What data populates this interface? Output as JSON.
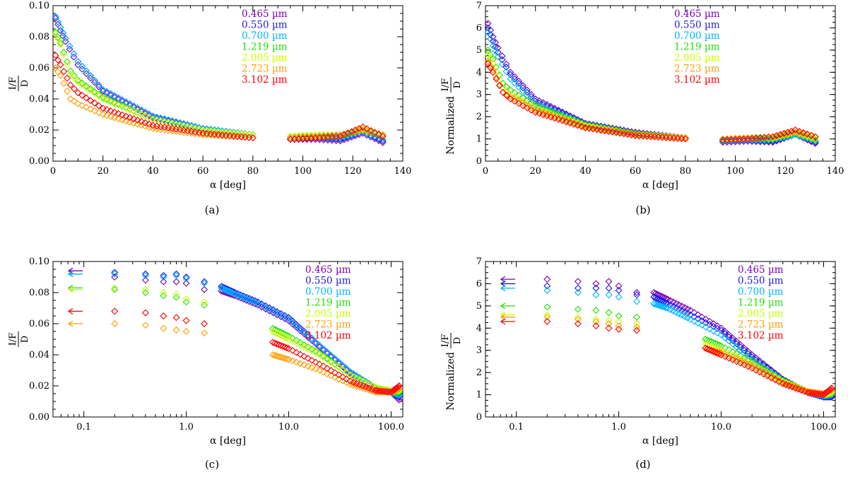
{
  "figure": {
    "wavelengths": [
      {
        "label": "0.465 µm",
        "color": "#7a00b8"
      },
      {
        "label": "0.550 µm",
        "color": "#1a1ae6"
      },
      {
        "label": "0.700 µm",
        "color": "#00b4ff"
      },
      {
        "label": "1.219 µm",
        "color": "#22e000"
      },
      {
        "label": "2.005 µm",
        "color": "#c8ff00"
      },
      {
        "label": "2.723 µm",
        "color": "#ff9e00"
      },
      {
        "label": "3.102 µm",
        "color": "#ff0000"
      }
    ],
    "panel_labels": [
      "(a)",
      "(b)",
      "(c)",
      "(d)"
    ],
    "xlabel": "α [deg]",
    "ylabel_abs": {
      "num": "I/F",
      "den": "D"
    },
    "ylabel_norm": {
      "prefix": "Normalized",
      "num": "I/F",
      "den": "D"
    }
  },
  "chart_data": [
    {
      "panel": "(a)",
      "type": "scatter",
      "xlabel": "α [deg]",
      "ylabel": "I/F / D",
      "xlim": [
        0,
        140
      ],
      "ylim": [
        0,
        0.1
      ],
      "xscale": "linear",
      "xticks": [
        "0",
        "20",
        "40",
        "60",
        "80",
        "100",
        "120",
        "140"
      ],
      "yticks": [
        "0.00",
        "0.02",
        "0.04",
        "0.06",
        "0.08",
        "0.10"
      ],
      "legend": "top-right",
      "series": [
        {
          "name": "0.465 µm",
          "x": [
            1,
            3,
            5,
            10,
            20,
            40,
            60,
            80,
            95,
            105,
            115,
            124,
            132
          ],
          "y": [
            0.092,
            0.084,
            0.077,
            0.062,
            0.045,
            0.028,
            0.021,
            0.017,
            0.014,
            0.014,
            0.013,
            0.018,
            0.012
          ]
        },
        {
          "name": "0.550 µm",
          "x": [
            1,
            3,
            5,
            10,
            20,
            40,
            60,
            80,
            95,
            105,
            115,
            124,
            132
          ],
          "y": [
            0.093,
            0.086,
            0.079,
            0.064,
            0.046,
            0.029,
            0.021,
            0.017,
            0.015,
            0.015,
            0.014,
            0.019,
            0.013
          ]
        },
        {
          "name": "0.700 µm",
          "x": [
            1,
            3,
            5,
            10,
            20,
            40,
            60,
            80,
            95,
            105,
            115,
            124,
            132
          ],
          "y": [
            0.093,
            0.086,
            0.079,
            0.064,
            0.046,
            0.029,
            0.021,
            0.017,
            0.015,
            0.015,
            0.015,
            0.019,
            0.014
          ]
        },
        {
          "name": "1.219 µm",
          "x": [
            1,
            3,
            7,
            10,
            20,
            40,
            60,
            80,
            95,
            105,
            115,
            124,
            132
          ],
          "y": [
            0.083,
            0.076,
            0.058,
            0.052,
            0.041,
            0.027,
            0.02,
            0.017,
            0.016,
            0.016,
            0.016,
            0.02,
            0.016
          ]
        },
        {
          "name": "2.005 µm",
          "x": [
            1,
            3,
            7,
            10,
            20,
            40,
            60,
            80,
            95,
            105,
            115,
            124,
            132
          ],
          "y": [
            0.082,
            0.075,
            0.056,
            0.051,
            0.04,
            0.027,
            0.02,
            0.017,
            0.016,
            0.017,
            0.017,
            0.021,
            0.017
          ]
        },
        {
          "name": "2.723 µm",
          "x": [
            1,
            3,
            7,
            10,
            20,
            40,
            60,
            80,
            95,
            105,
            115,
            124,
            132
          ],
          "y": [
            0.06,
            0.055,
            0.04,
            0.037,
            0.03,
            0.021,
            0.017,
            0.015,
            0.015,
            0.016,
            0.017,
            0.02,
            0.017
          ]
        },
        {
          "name": "3.102 µm",
          "x": [
            1,
            3,
            7,
            10,
            20,
            40,
            60,
            80,
            95,
            105,
            115,
            124,
            132
          ],
          "y": [
            0.068,
            0.062,
            0.049,
            0.044,
            0.034,
            0.023,
            0.018,
            0.015,
            0.014,
            0.015,
            0.016,
            0.022,
            0.016
          ]
        }
      ]
    },
    {
      "panel": "(b)",
      "type": "scatter",
      "xlabel": "α [deg]",
      "ylabel": "Normalized I/F / D",
      "xlim": [
        0,
        140
      ],
      "ylim": [
        0,
        7
      ],
      "xscale": "linear",
      "xticks": [
        "0",
        "20",
        "40",
        "60",
        "80",
        "100",
        "120",
        "140"
      ],
      "yticks": [
        "0",
        "1",
        "2",
        "3",
        "4",
        "5",
        "6",
        "7"
      ],
      "legend": "top-right",
      "series": [
        {
          "name": "0.465 µm",
          "x": [
            1,
            3,
            5,
            10,
            20,
            40,
            60,
            80,
            95,
            105,
            115,
            124,
            132
          ],
          "y": [
            6.2,
            5.6,
            5.1,
            4.0,
            2.8,
            1.7,
            1.3,
            1.05,
            0.85,
            0.9,
            0.85,
            1.2,
            0.8
          ]
        },
        {
          "name": "0.550 µm",
          "x": [
            1,
            3,
            5,
            10,
            20,
            40,
            60,
            80,
            95,
            105,
            115,
            124,
            132
          ],
          "y": [
            6.0,
            5.4,
            4.9,
            3.9,
            2.7,
            1.7,
            1.25,
            1.05,
            0.9,
            0.95,
            0.9,
            1.2,
            0.85
          ]
        },
        {
          "name": "0.700 µm",
          "x": [
            1,
            3,
            5,
            10,
            20,
            40,
            60,
            80,
            95,
            105,
            115,
            124,
            132
          ],
          "y": [
            5.8,
            5.2,
            4.7,
            3.7,
            2.6,
            1.65,
            1.25,
            1.05,
            0.9,
            0.95,
            0.95,
            1.2,
            0.9
          ]
        },
        {
          "name": "1.219 µm",
          "x": [
            1,
            3,
            7,
            10,
            20,
            40,
            60,
            80,
            95,
            105,
            115,
            124,
            132
          ],
          "y": [
            5.0,
            4.6,
            3.5,
            3.2,
            2.5,
            1.65,
            1.25,
            1.05,
            0.95,
            1.0,
            1.0,
            1.25,
            0.95
          ]
        },
        {
          "name": "2.005 µm",
          "x": [
            1,
            3,
            7,
            10,
            20,
            40,
            60,
            80,
            95,
            105,
            115,
            124,
            132
          ],
          "y": [
            4.8,
            4.4,
            3.3,
            3.0,
            2.4,
            1.6,
            1.2,
            1.05,
            1.0,
            1.05,
            1.05,
            1.3,
            1.0
          ]
        },
        {
          "name": "2.723 µm",
          "x": [
            1,
            3,
            7,
            10,
            20,
            40,
            60,
            80,
            95,
            105,
            115,
            124,
            132
          ],
          "y": [
            4.5,
            4.1,
            3.1,
            2.9,
            2.3,
            1.55,
            1.2,
            1.05,
            1.0,
            1.05,
            1.1,
            1.3,
            1.1
          ]
        },
        {
          "name": "3.102 µm",
          "x": [
            1,
            3,
            7,
            10,
            20,
            40,
            60,
            80,
            95,
            105,
            115,
            124,
            132
          ],
          "y": [
            4.4,
            4.0,
            3.1,
            2.8,
            2.2,
            1.5,
            1.15,
            1.0,
            0.95,
            1.0,
            1.1,
            1.4,
            1.1
          ]
        }
      ]
    },
    {
      "panel": "(c)",
      "type": "scatter",
      "xlabel": "α [deg]",
      "ylabel": "I/F / D",
      "xlim": [
        0.05,
        130
      ],
      "ylim": [
        0,
        0.1
      ],
      "xscale": "log",
      "xticks": [
        "0.1",
        "1.0",
        "10.0",
        "100.0"
      ],
      "yticks": [
        "0.00",
        "0.02",
        "0.04",
        "0.06",
        "0.08",
        "0.10"
      ],
      "legend": "top-right",
      "arrow_values": [
        0.094,
        0.092,
        0.092,
        0.083,
        0.082,
        0.06,
        0.068
      ],
      "series": [
        {
          "name": "0.465 µm",
          "x": [
            0.2,
            0.4,
            0.6,
            0.8,
            1.0,
            1.5,
            2.2,
            3,
            5,
            10,
            20,
            40,
            70,
            100,
            120
          ],
          "y": [
            0.09,
            0.088,
            0.087,
            0.087,
            0.086,
            0.082,
            0.081,
            0.078,
            0.072,
            0.062,
            0.045,
            0.028,
            0.018,
            0.016,
            0.011
          ]
        },
        {
          "name": "0.550 µm",
          "x": [
            0.2,
            0.4,
            0.6,
            0.8,
            1.0,
            1.5,
            2.2,
            3,
            5,
            10,
            20,
            40,
            70,
            100,
            120
          ],
          "y": [
            0.093,
            0.092,
            0.091,
            0.092,
            0.09,
            0.087,
            0.084,
            0.08,
            0.074,
            0.064,
            0.046,
            0.029,
            0.019,
            0.016,
            0.013
          ]
        },
        {
          "name": "0.700 µm",
          "x": [
            0.2,
            0.4,
            0.6,
            0.8,
            1.0,
            1.5,
            2.2,
            3,
            5,
            10,
            20,
            40,
            70,
            100,
            120
          ],
          "y": [
            0.092,
            0.091,
            0.09,
            0.091,
            0.089,
            0.086,
            0.083,
            0.079,
            0.073,
            0.063,
            0.046,
            0.029,
            0.019,
            0.016,
            0.014
          ]
        },
        {
          "name": "1.219 µm",
          "x": [
            0.2,
            0.4,
            0.6,
            0.8,
            1.0,
            1.5,
            7,
            10,
            20,
            40,
            70,
            100,
            120
          ],
          "y": [
            0.082,
            0.08,
            0.078,
            0.077,
            0.074,
            0.072,
            0.057,
            0.052,
            0.041,
            0.027,
            0.019,
            0.016,
            0.016
          ]
        },
        {
          "name": "2.005 µm",
          "x": [
            0.2,
            0.4,
            0.6,
            0.8,
            1.0,
            1.5,
            7,
            10,
            20,
            40,
            70,
            100,
            120
          ],
          "y": [
            0.083,
            0.082,
            0.08,
            0.079,
            0.076,
            0.074,
            0.055,
            0.05,
            0.04,
            0.027,
            0.019,
            0.017,
            0.017
          ]
        },
        {
          "name": "2.723 µm",
          "x": [
            0.2,
            0.4,
            0.6,
            0.8,
            1.0,
            1.5,
            7,
            10,
            20,
            40,
            70,
            100,
            120
          ],
          "y": [
            0.06,
            0.059,
            0.057,
            0.056,
            0.055,
            0.054,
            0.04,
            0.037,
            0.03,
            0.021,
            0.016,
            0.016,
            0.018
          ]
        },
        {
          "name": "3.102 µm",
          "x": [
            0.2,
            0.4,
            0.6,
            0.8,
            1.0,
            1.5,
            7,
            10,
            20,
            40,
            70,
            100,
            120
          ],
          "y": [
            0.068,
            0.067,
            0.065,
            0.064,
            0.062,
            0.06,
            0.048,
            0.044,
            0.034,
            0.023,
            0.017,
            0.016,
            0.02
          ]
        }
      ]
    },
    {
      "panel": "(d)",
      "type": "scatter",
      "xlabel": "α [deg]",
      "ylabel": "Normalized I/F / D",
      "xlim": [
        0.05,
        130
      ],
      "ylim": [
        0,
        7
      ],
      "xscale": "log",
      "xticks": [
        "0.1",
        "1.0",
        "10.0",
        "100.0"
      ],
      "yticks": [
        "0",
        "1",
        "2",
        "3",
        "4",
        "5",
        "6",
        "7"
      ],
      "legend": "top-right",
      "arrow_values": [
        6.2,
        6.0,
        5.8,
        5.0,
        4.6,
        4.5,
        4.3
      ],
      "series": [
        {
          "name": "0.465 µm",
          "x": [
            0.2,
            0.4,
            0.6,
            0.8,
            1.0,
            1.5,
            2.2,
            3,
            5,
            10,
            20,
            40,
            70,
            100,
            120
          ],
          "y": [
            6.2,
            6.1,
            6.0,
            6.1,
            5.9,
            5.6,
            5.6,
            5.3,
            4.8,
            4.0,
            2.8,
            1.7,
            1.1,
            0.9,
            0.9
          ]
        },
        {
          "name": "0.550 µm",
          "x": [
            0.2,
            0.4,
            0.6,
            0.8,
            1.0,
            1.5,
            2.2,
            3,
            5,
            10,
            20,
            40,
            70,
            100,
            120
          ],
          "y": [
            5.9,
            5.8,
            5.8,
            5.8,
            5.7,
            5.5,
            5.4,
            5.1,
            4.6,
            3.9,
            2.7,
            1.7,
            1.1,
            0.9,
            0.95
          ]
        },
        {
          "name": "0.700 µm",
          "x": [
            0.2,
            0.4,
            0.6,
            0.8,
            1.0,
            1.5,
            2.2,
            3,
            5,
            10,
            20,
            40,
            70,
            100,
            120
          ],
          "y": [
            5.7,
            5.6,
            5.5,
            5.5,
            5.4,
            5.2,
            5.1,
            4.9,
            4.4,
            3.7,
            2.6,
            1.65,
            1.1,
            0.95,
            1.0
          ]
        },
        {
          "name": "1.219 µm",
          "x": [
            0.2,
            0.4,
            0.6,
            0.8,
            1.0,
            1.5,
            7,
            10,
            20,
            40,
            70,
            100,
            120
          ],
          "y": [
            4.95,
            4.85,
            4.8,
            4.7,
            4.55,
            4.5,
            3.5,
            3.2,
            2.5,
            1.65,
            1.15,
            1.0,
            1.05
          ]
        },
        {
          "name": "2.005 µm",
          "x": [
            0.2,
            0.4,
            0.6,
            0.8,
            1.0,
            1.5,
            7,
            10,
            20,
            40,
            70,
            100,
            120
          ],
          "y": [
            4.6,
            4.5,
            4.4,
            4.35,
            4.3,
            4.2,
            3.3,
            3.0,
            2.4,
            1.6,
            1.15,
            1.0,
            1.1
          ]
        },
        {
          "name": "2.723 µm",
          "x": [
            0.2,
            0.4,
            0.6,
            0.8,
            1.0,
            1.5,
            7,
            10,
            20,
            40,
            70,
            100,
            120
          ],
          "y": [
            4.5,
            4.4,
            4.3,
            4.2,
            4.1,
            4.05,
            3.1,
            2.9,
            2.3,
            1.55,
            1.15,
            1.05,
            1.2
          ]
        },
        {
          "name": "3.102 µm",
          "x": [
            0.2,
            0.4,
            0.6,
            0.8,
            1.0,
            1.5,
            7,
            10,
            20,
            40,
            70,
            100,
            120
          ],
          "y": [
            4.3,
            4.2,
            4.1,
            4.0,
            3.95,
            3.9,
            3.1,
            2.8,
            2.2,
            1.5,
            1.1,
            1.0,
            1.3
          ]
        }
      ]
    }
  ]
}
